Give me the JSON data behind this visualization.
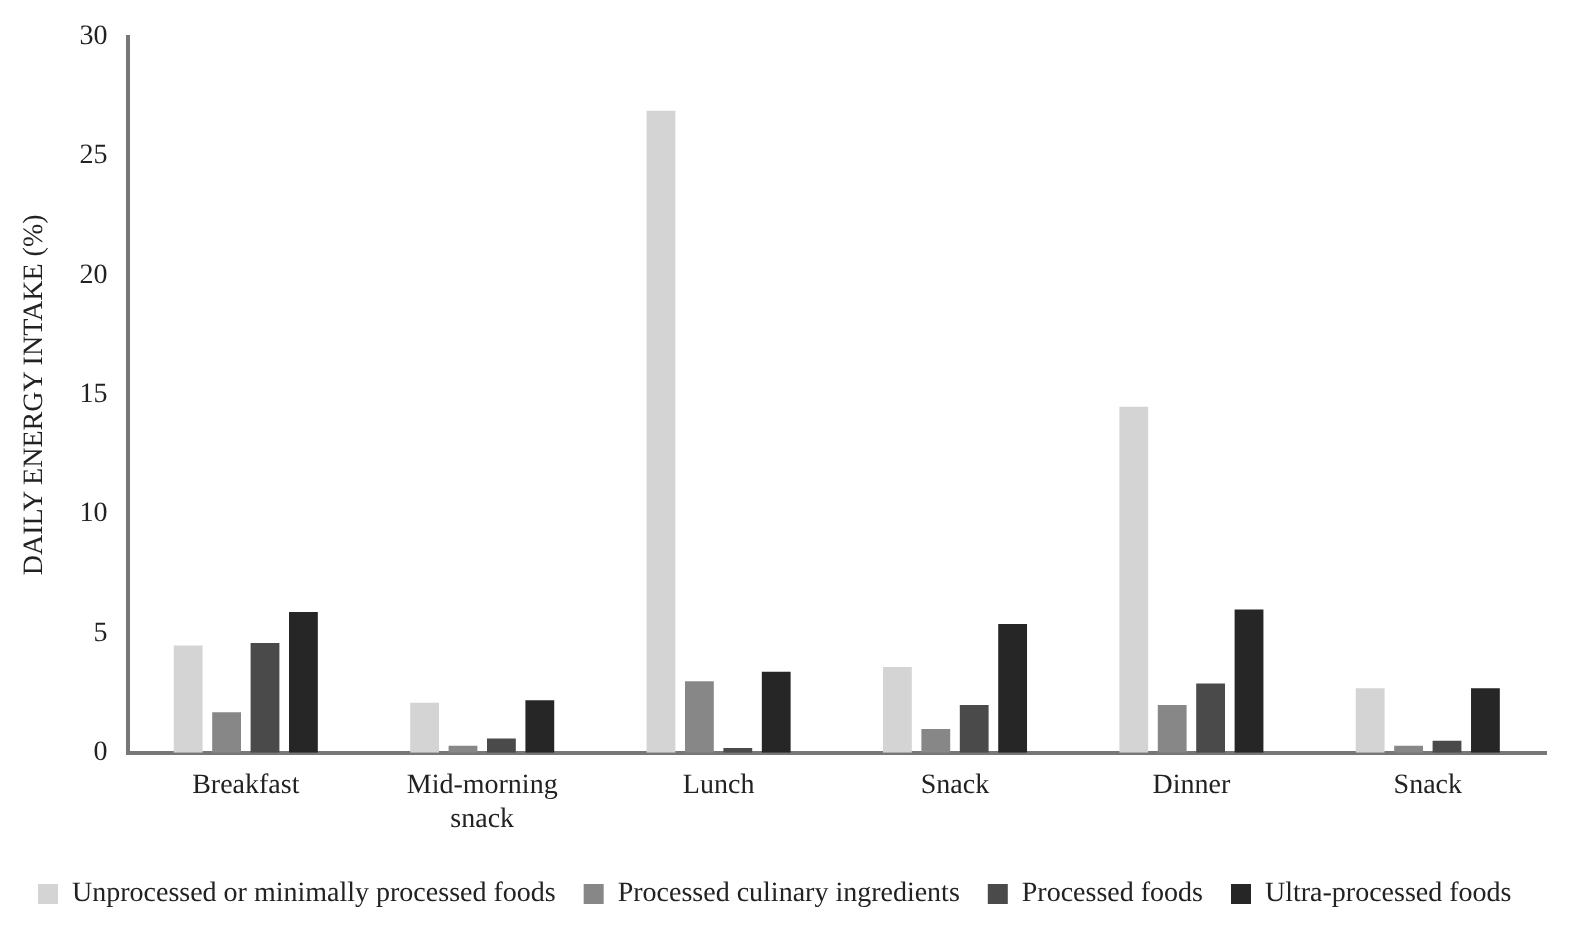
{
  "chart_data": {
    "type": "bar",
    "ylabel": "DAILY ENERGY INTAKE (%)",
    "categories": [
      "Breakfast",
      "Mid-morning snack",
      "Lunch",
      "Snack",
      "Dinner",
      "Snack"
    ],
    "series": [
      {
        "name": "Unprocessed or minimally processed foods",
        "color": "#d4d4d4",
        "values": [
          4.5,
          2.1,
          26.9,
          3.6,
          14.5,
          2.7
        ]
      },
      {
        "name": "Processed culinary ingredients",
        "color": "#878787",
        "values": [
          1.7,
          0.3,
          3.0,
          1.0,
          2.0,
          0.3
        ]
      },
      {
        "name": "Processed foods",
        "color": "#4a4a4a",
        "values": [
          4.6,
          0.6,
          0.2,
          2.0,
          2.9,
          0.5
        ]
      },
      {
        "name": "Ultra-processed foods",
        "color": "#262626",
        "values": [
          5.9,
          2.2,
          3.4,
          5.4,
          6.0,
          2.7
        ]
      }
    ],
    "ylim": [
      0,
      30
    ],
    "yticks": [
      0,
      5,
      10,
      15,
      20,
      25,
      30
    ],
    "grid": false,
    "legend": "bottom"
  }
}
